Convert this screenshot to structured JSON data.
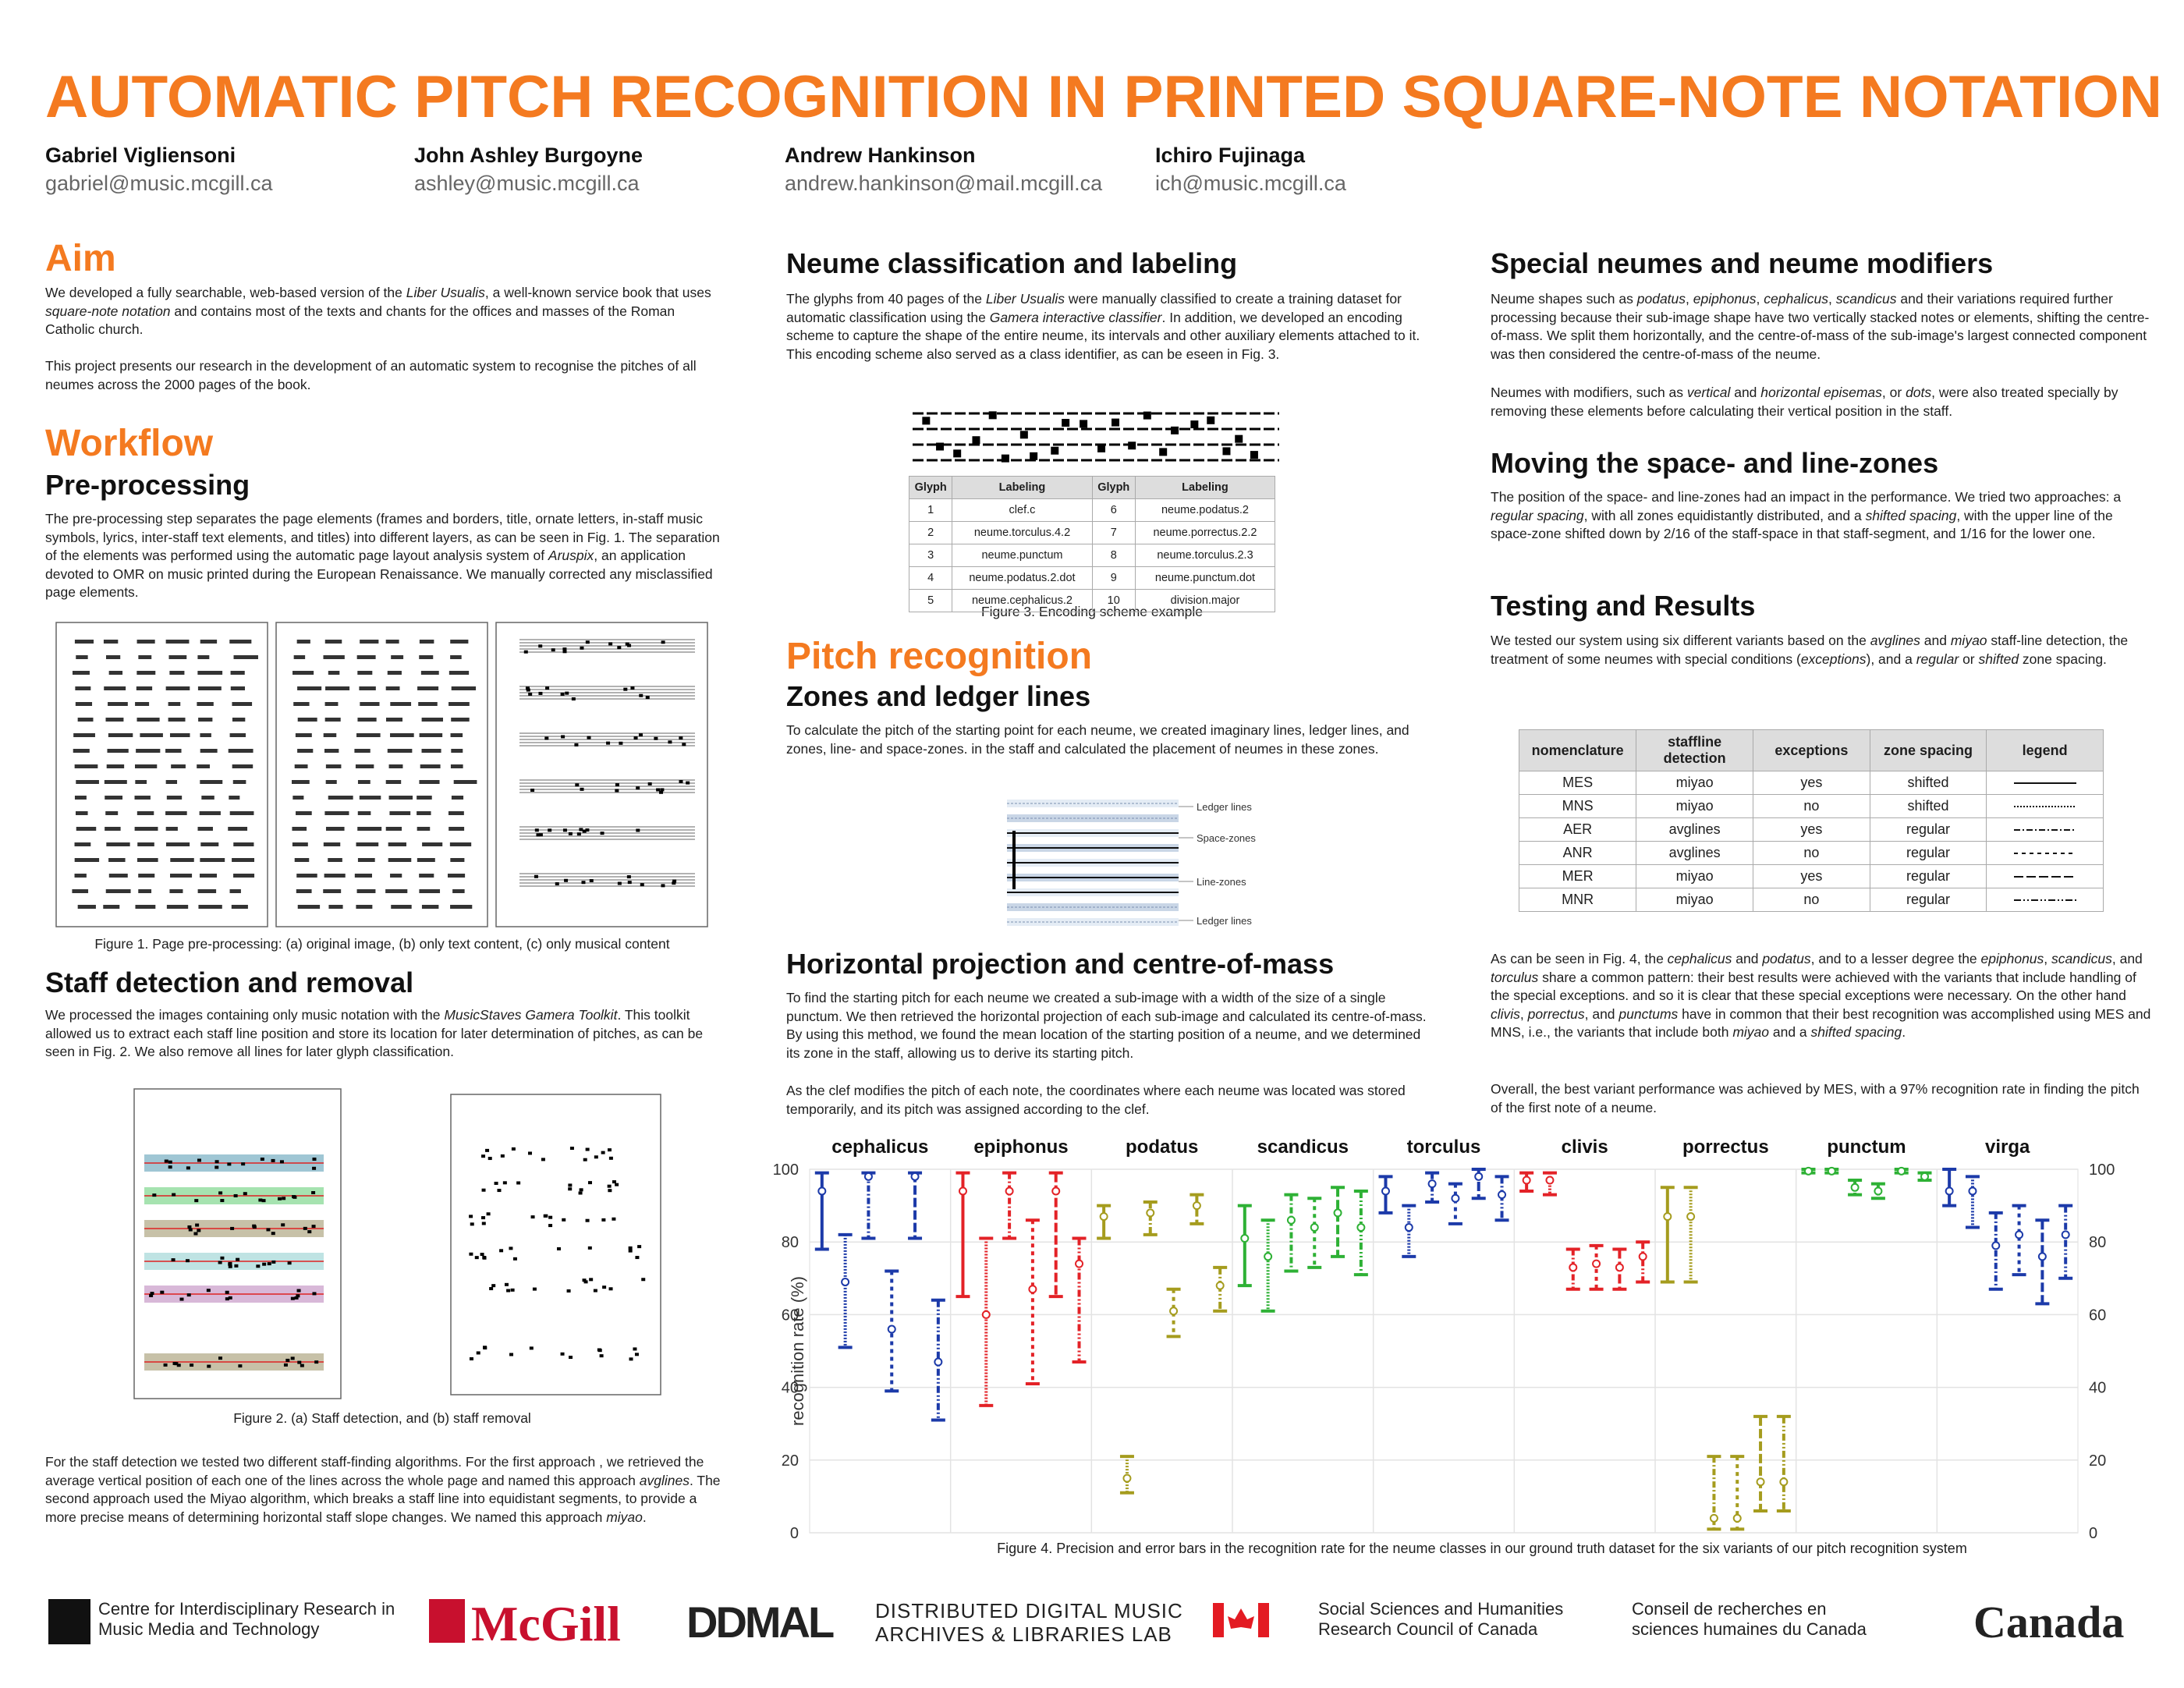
{
  "header": {
    "title": "AUTOMATIC PITCH RECOGNITION IN PRINTED SQUARE-NOTE NOTATION",
    "authors": [
      {
        "name": "Gabriel Vigliensoni",
        "email": "gabriel@music.mcgill.ca"
      },
      {
        "name": "John Ashley Burgoyne",
        "email": "ashley@music.mcgill.ca"
      },
      {
        "name": "Andrew Hankinson",
        "email": "andrew.hankinson@mail.mcgill.ca"
      },
      {
        "name": "Ichiro Fujinaga",
        "email": "ich@music.mcgill.ca"
      }
    ]
  },
  "aim": {
    "heading": "Aim",
    "paragraphs": [
      [
        "We developed a fully searchable, web-based version of the ",
        "Liber Usualis",
        ", a well-known service book that uses ",
        "square-note notation",
        " and contains most of the texts and chants for the offices and masses of the Roman Catholic church."
      ],
      [
        "This project presents our research in the development of an automatic system to recognise the pitches of all neumes across the 2000 pages of the book."
      ]
    ]
  },
  "workflow": {
    "heading": "Workflow",
    "preprocessing": {
      "heading": "Pre-processing",
      "paragraphs": [
        [
          "The pre-processing step separates the page elements (frames and borders, title, ornate letters, in-staff music symbols, lyrics, inter-staff text elements, and titles) into different layers, as can be seen in Fig. 1. The separation of the elements was  performed using the automatic page layout analysis system of ",
          "Aruspix",
          ", an application devoted to OMR on music printed during the European Renaissance. We manually corrected any misclassified page elements."
        ]
      ],
      "caption": "Figure 1. Page pre-processing: (a) original image, (b) only text content, (c) only musical content"
    },
    "staff": {
      "heading": "Staff detection and removal",
      "paragraphs": [
        [
          "We processed the images containing only music notation with the ",
          "MusicStaves Gamera Toolkit",
          ". This toolkit allowed us to extract each staff line position and store its location for later determination of pitches, as can be seen in Fig. 2. We also remove all lines for later glyph classification."
        ],
        [
          "For the staff detection we tested two different staff-finding algorithms. For the first approach , we retrieved the average vertical position of each one of the lines across the whole page and named this approach ",
          "avglines",
          ". The second approach used the Miyao algorithm, which breaks a staff line into equidistant segments, to provide a more precise means of determining horizontal staff slope changes. We named this approach ",
          "miyao",
          "."
        ]
      ],
      "caption": "Figure 2. (a) Staff detection,  and (b) staff removal"
    }
  },
  "neume": {
    "heading": "Neume classification and labeling",
    "paragraphs": [
      [
        "The glyphs from 40 pages of the ",
        "Liber Usualis",
        " were manually classified to create a training dataset for automatic classification using the ",
        "Gamera interactive classifier",
        ". In addition, we developed an encoding scheme to capture the shape of the entire neume, its intervals and other auxiliary elements attached to it. This encoding scheme also served as a class identifier, as can be eseen in Fig. 3."
      ]
    ],
    "table": {
      "header": [
        "Glyph",
        "Labeling",
        "Glyph",
        "Labeling"
      ],
      "rows": [
        [
          "1",
          "clef.c",
          "6",
          "neume.podatus.2"
        ],
        [
          "2",
          "neume.torculus.4.2",
          "7",
          "neume.porrectus.2.2"
        ],
        [
          "3",
          "neume.punctum",
          "8",
          "neume.torculus.2.3"
        ],
        [
          "4",
          "neume.podatus.2.dot",
          "9",
          "neume.punctum.dot"
        ],
        [
          "5",
          "neume.cephalicus.2",
          "10",
          "division.major"
        ]
      ]
    },
    "caption": "Figure 3. Encoding scheme example"
  },
  "pitch": {
    "heading": "Pitch recognition",
    "zones": {
      "heading": "Zones and ledger lines",
      "paragraphs": [
        [
          "To calculate the pitch of the starting point for each neume, we created imaginary lines, ledger lines, and zones, line- and space-zones. in the staff and calculated the placement of neumes in these zones."
        ]
      ],
      "labels": [
        "Ledger lines",
        "Space-zones",
        "Line-zones",
        "Ledger lines"
      ]
    },
    "projection": {
      "heading": "Horizontal projection and centre-of-mass",
      "paragraphs": [
        [
          "To find the starting pitch for each neume we created a sub-image with a width of the size of a single punctum. We then retrieved the horizontal projection of each sub-image and calculated its centre-of-mass. By using this method, we found the mean location of the starting position of a neume, and we determined its zone in the staff, allowing us to derive its starting pitch."
        ],
        [
          "As the clef modifies the pitch of each note, the coordinates where each neume was located was stored temporarily, and its pitch was assigned according to the clef."
        ]
      ]
    }
  },
  "special": {
    "heading": "Special neumes and neume modifiers",
    "paragraphs": [
      [
        "Neume shapes such as ",
        "podatus",
        ", ",
        "epiphonus",
        ", ",
        "cephalicus",
        ", ",
        "scandicus",
        " and their variations required further processing because their sub-image shape have two vertically stacked notes or elements, shifting the centre-of-mass. We split them horizontally, and the centre-of-mass of the sub-image's largest connected component was then considered the centre-of-mass of the neume."
      ],
      [
        "Neumes with modifiers, such as ",
        "vertical",
        " and ",
        "horizontal episemas",
        ", or ",
        "dots",
        ", were also treated specially by removing these elements before calculating their vertical position in the staff."
      ]
    ]
  },
  "moving": {
    "heading": "Moving the space- and line-zones",
    "paragraphs": [
      [
        "The position of the space- and line-zones had an impact in the performance. We tried two approaches: a ",
        "regular spacing",
        ", with all zones equidistantly distributed, and a ",
        "shifted spacing",
        ", with the upper line of the space-zone shifted down by 2/16 of the staff-space in that staff-segment, and 1/16 for the lower one."
      ]
    ]
  },
  "testing": {
    "heading": "Testing and Results",
    "paragraphs": [
      [
        "We tested our system using six different variants based on the ",
        "avglines",
        " and ",
        "miyao",
        " staff-line detection, the treatment of some neumes with special conditions (",
        "exceptions",
        "), and a ",
        "regular",
        " or ",
        "shifted",
        " zone spacing."
      ],
      [
        "As can be seen in Fig. 4, the ",
        "cephalicus",
        " and ",
        "podatus",
        ", and to a lesser degree the ",
        "epiphonus",
        ", ",
        "scandicus",
        ", and ",
        "torculus",
        " share a common pattern: their best results were achieved with the variants that include handling of the special exceptions. and so it is clear that these special exceptions were necessary. On the other hand ",
        "clivis",
        ", ",
        "porrectus",
        ", and ",
        "punctums",
        " have in common that their best recognition was accomplished using MES and MNS, i.e., the variants that include both ",
        "miyao",
        " and a ",
        "shifted spacing",
        "."
      ],
      [
        "Overall, the best variant performance was achieved by MES, with a 97% recognition rate in finding the pitch of the first note of a neume."
      ]
    ],
    "table": {
      "header": [
        "nomenclature",
        "staffline detection",
        "exceptions",
        "zone spacing",
        "legend"
      ],
      "rows": [
        [
          "miyao",
          "yes",
          "shifted"
        ],
        [
          "miyao",
          "no",
          "shifted"
        ],
        [
          "avglines",
          "yes",
          "regular"
        ],
        [
          "avglines",
          "no",
          "regular"
        ],
        [
          "miyao",
          "yes",
          "regular"
        ],
        [
          "miyao",
          "no",
          "regular"
        ]
      ]
    }
  },
  "logos": [
    [
      "Centre for Interdisciplinary Research in",
      "Music Media and Technology"
    ],
    [
      "McGill"
    ],
    [
      "DDMAL"
    ],
    [
      "DISTRIBUTED DIGITAL MUSIC",
      "ARCHIVES & LIBRARIES LAB"
    ],
    [
      "Social Sciences and Humanities",
      "Research Council of Canada"
    ],
    [
      "Conseil de recherches en",
      "sciences humaines du Canada"
    ],
    [
      "Canada"
    ]
  ],
  "chart_data": {
    "type": "errorbar",
    "caption": "Figure 4. Precision and error bars in the recognition rate for the neume classes in our ground truth dataset for the six variants of our pitch recognition system",
    "ylabel": "recognition rate (%)",
    "categories": [
      "cephalicus",
      "epiphonus",
      "podatus",
      "scandicus",
      "torculus",
      "clivis",
      "porrectus",
      "punctum",
      "virga"
    ],
    "category_colors": [
      "#1c3aa9",
      "#e32227",
      "#a59c1e",
      "#2eb135",
      "#1c3aa9",
      "#e32227",
      "#a59c1e",
      "#2eb135",
      "#1c3aa9"
    ],
    "ylim": [
      0,
      100
    ],
    "yticks": [
      0,
      20,
      40,
      60,
      80,
      100
    ],
    "grid": true,
    "series": [
      {
        "name": "MES",
        "values": [
          94,
          94,
          87,
          81,
          94,
          97,
          87,
          99.5,
          94
        ],
        "upper": [
          99,
          99,
          90,
          90,
          98,
          99,
          95,
          100,
          100
        ],
        "lower": [
          78,
          65,
          81,
          68,
          88,
          94,
          69,
          99,
          90
        ]
      },
      {
        "name": "MNS",
        "values": [
          69,
          60,
          15,
          76,
          84,
          97,
          87,
          99.5,
          94
        ],
        "upper": [
          82,
          81,
          21,
          86,
          90,
          99,
          95,
          100,
          98
        ],
        "lower": [
          51,
          35,
          11,
          61,
          76,
          93,
          69,
          99,
          84
        ]
      },
      {
        "name": "AER",
        "values": [
          98,
          94,
          88,
          86,
          96,
          73,
          4,
          95,
          79
        ],
        "upper": [
          99,
          99,
          91,
          93,
          99,
          78,
          21,
          97,
          88
        ],
        "lower": [
          81,
          81,
          82,
          72,
          91,
          67,
          1,
          93,
          67
        ]
      },
      {
        "name": "ANR",
        "values": [
          56,
          67,
          61,
          84,
          92,
          74,
          4,
          94,
          82
        ],
        "upper": [
          72,
          86,
          67,
          92,
          96,
          79,
          21,
          96,
          90
        ],
        "lower": [
          39,
          41,
          54,
          73,
          85,
          67,
          1,
          92,
          71
        ]
      },
      {
        "name": "MER",
        "values": [
          98,
          94,
          90,
          88,
          98,
          73,
          14,
          99.5,
          76
        ],
        "upper": [
          99,
          99,
          93,
          95,
          100,
          78,
          32,
          100,
          86
        ],
        "lower": [
          81,
          65,
          85,
          76,
          92,
          67,
          6,
          99,
          63
        ]
      },
      {
        "name": "MNR",
        "values": [
          47,
          74,
          68,
          84,
          93,
          76,
          14,
          98,
          82
        ],
        "upper": [
          64,
          81,
          73,
          94,
          98,
          80,
          32,
          99,
          90
        ],
        "lower": [
          31,
          47,
          61,
          71,
          86,
          69,
          6,
          97,
          70
        ]
      }
    ]
  }
}
